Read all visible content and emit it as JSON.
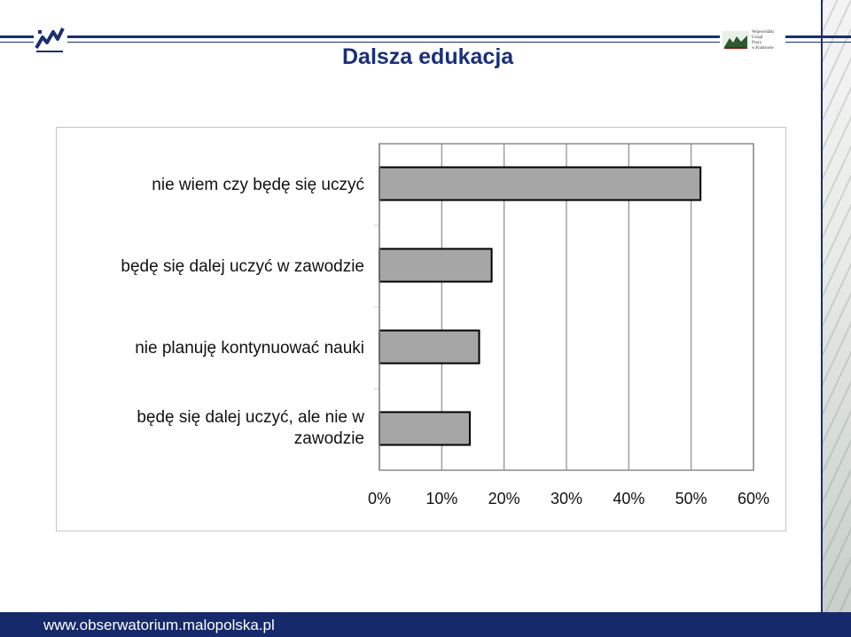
{
  "header": {
    "title": "Dalsza edukacja",
    "logo_right_text": [
      "Wojewódzki",
      "Urząd",
      "Pracy",
      "w Krakowie"
    ]
  },
  "footer": {
    "url": "www.obserwatorium.malopolska.pl"
  },
  "colors": {
    "bar_fill": "#a6a6a6",
    "grid": "#8c8c8c",
    "brand_navy": "#1a2f6e"
  },
  "chart_data": {
    "type": "bar",
    "orientation": "horizontal",
    "title": "",
    "xlabel": "",
    "ylabel": "",
    "categories": [
      "nie wiem czy będę się uczyć",
      "będę się dalej uczyć w zawodzie",
      "nie planuję kontynuować nauki",
      "będę się dalej uczyć, ale nie w zawodzie"
    ],
    "values": [
      51.5,
      18,
      16,
      14.5
    ],
    "xlim": [
      0,
      60
    ],
    "x_ticks": [
      "0%",
      "10%",
      "20%",
      "30%",
      "40%",
      "50%",
      "60%"
    ],
    "grid": true,
    "legend": "none"
  }
}
